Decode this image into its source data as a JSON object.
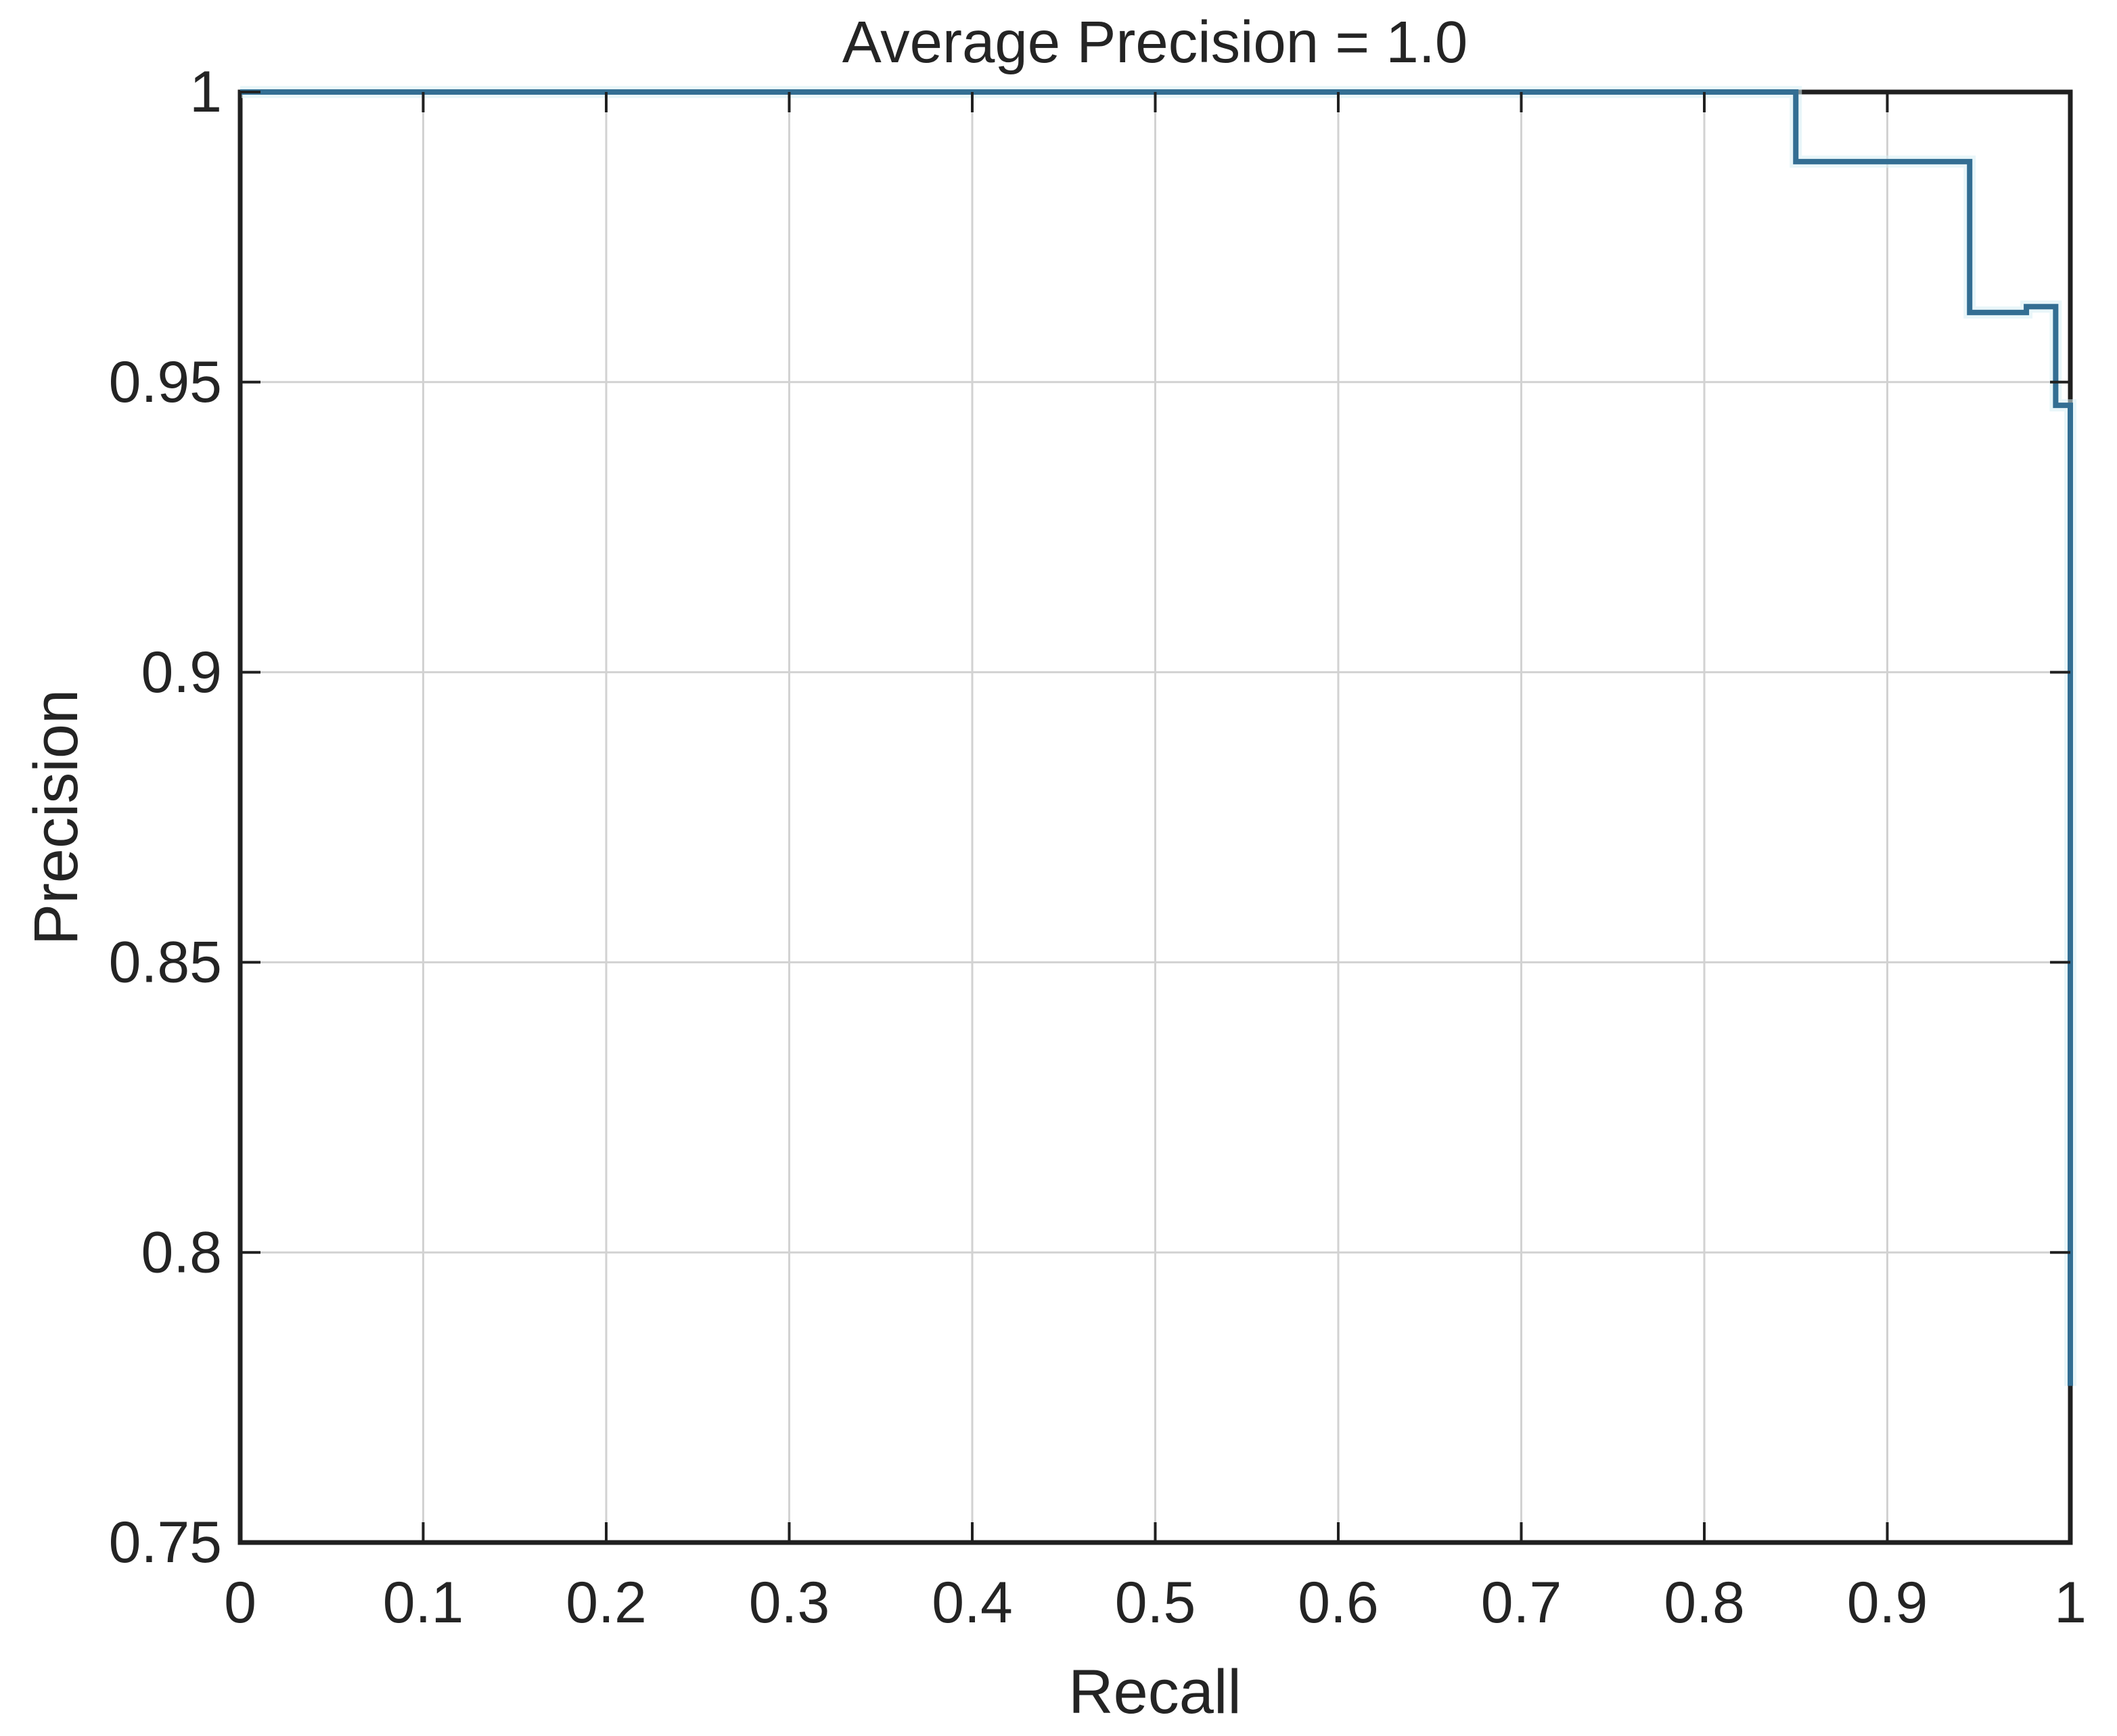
{
  "figure": {
    "title": "Average Precision = 1.0",
    "xlabel": "Recall",
    "ylabel": "Precision"
  },
  "chart_data": {
    "type": "line",
    "title": "Average Precision = 1.0",
    "xlabel": "Recall",
    "ylabel": "Precision",
    "xlim": [
      0,
      1
    ],
    "ylim": [
      0.75,
      1
    ],
    "grid": true,
    "legend": "none",
    "average_precision": 1.0,
    "x_ticks": {
      "values": [
        0,
        0.1,
        0.2,
        0.3,
        0.4,
        0.5,
        0.6,
        0.7,
        0.8,
        0.9,
        1
      ],
      "labels": [
        "0",
        "0.1",
        "0.2",
        "0.3",
        "0.4",
        "0.5",
        "0.6",
        "0.7",
        "0.8",
        "0.9",
        "1"
      ]
    },
    "y_ticks": {
      "values": [
        1,
        0.95,
        0.9,
        0.85,
        0.8,
        0.75
      ],
      "labels": [
        "1",
        "0.95",
        "0.9",
        "0.85",
        "0.8",
        "0.75"
      ]
    },
    "series": [
      {
        "name": "precision_recall_curve",
        "color": "#336e93",
        "x": [
          0,
          0.85,
          0.85,
          0.945,
          0.945,
          0.976,
          0.976,
          0.992,
          0.992,
          1.0,
          1.0
        ],
        "y": [
          1.0,
          1.0,
          0.988,
          0.988,
          0.962,
          0.962,
          0.963,
          0.963,
          0.946,
          0.946,
          0.777
        ]
      }
    ]
  },
  "style": {
    "axis_color": "#202020",
    "grid_color": "#d2d2d2",
    "text_color": "#242424",
    "background": "#ffffff",
    "curve_halo": "#d7eef4"
  }
}
